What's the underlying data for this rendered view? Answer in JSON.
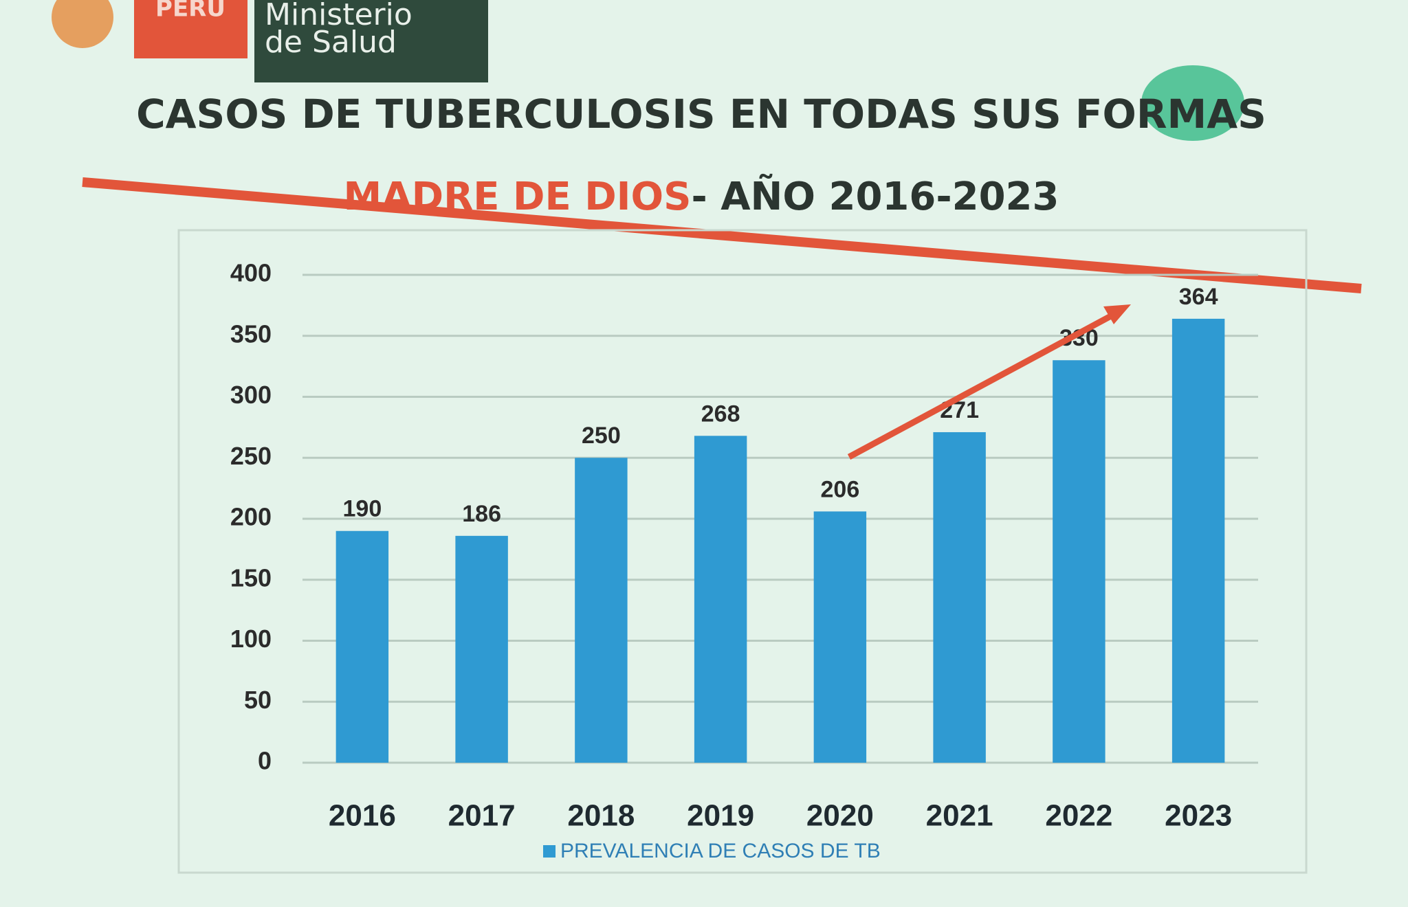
{
  "header": {
    "country": "PERÚ",
    "ministry_line1": "Ministerio",
    "ministry_line2": "de Salud"
  },
  "chart_data": {
    "type": "bar",
    "title": "CASOS DE TUBERCULOSIS EN TODAS SUS FORMAS",
    "subtitle_highlight": "MADRE DE DIOS",
    "subtitle": "- AÑO 2016-2023",
    "categories": [
      "2016",
      "2017",
      "2018",
      "2019",
      "2020",
      "2021",
      "2022",
      "2023"
    ],
    "series": [
      {
        "name": "PREVALENCIA DE CASOS DE TB",
        "color": "#2f9ad2",
        "values": [
          190,
          186,
          250,
          268,
          206,
          271,
          330,
          364
        ]
      }
    ],
    "ylim": [
      0,
      400
    ],
    "yticks": [
      0,
      50,
      100,
      150,
      200,
      250,
      300,
      350,
      400
    ],
    "grid": true,
    "legend": "bottom"
  }
}
